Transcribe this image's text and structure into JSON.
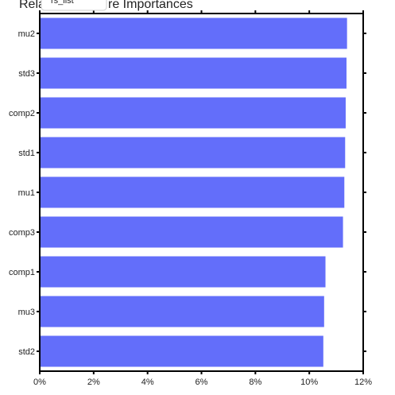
{
  "chart_data": {
    "type": "bar",
    "orientation": "horizontal",
    "title_left": "Rela",
    "title_right": "re Importances",
    "tooltip": "rs_list",
    "categories": [
      "mu2",
      "std3",
      "comp2",
      "std1",
      "mu1",
      "comp3",
      "comp1",
      "mu3",
      "std2"
    ],
    "values": [
      11.4,
      11.38,
      11.35,
      11.33,
      11.3,
      11.25,
      10.6,
      10.55,
      10.52
    ],
    "xlim": [
      0,
      12
    ],
    "xticks": [
      0,
      2,
      4,
      6,
      8,
      10,
      12
    ],
    "xtick_labels": [
      "0%",
      "2%",
      "4%",
      "6%",
      "8%",
      "10%",
      "12%"
    ],
    "grid": false,
    "bar_color": "#636efa"
  }
}
